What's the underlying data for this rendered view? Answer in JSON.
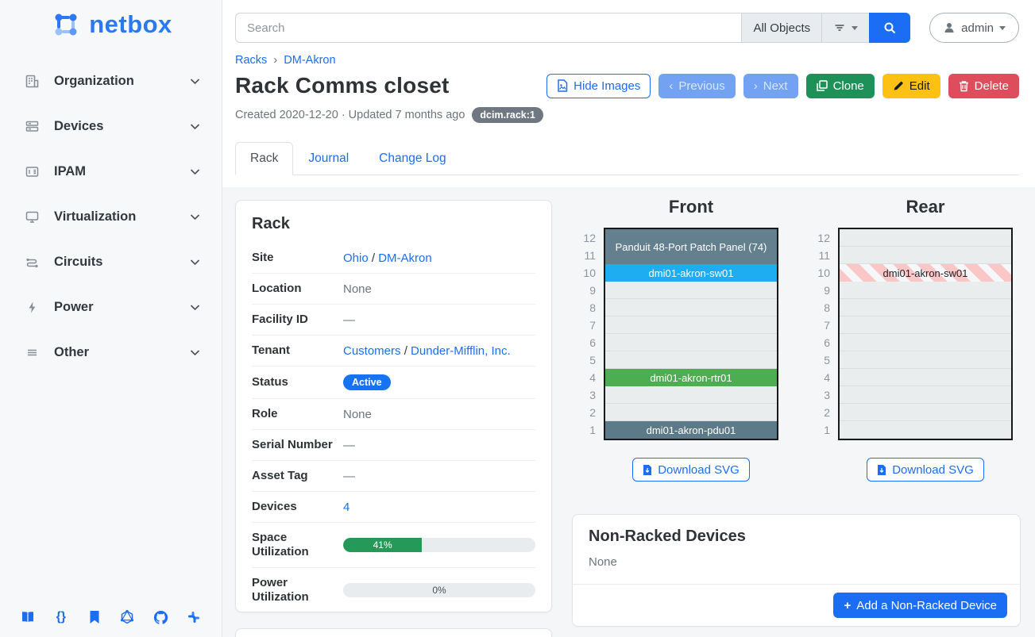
{
  "sidebar": {
    "logo_text": "netbox",
    "items": [
      {
        "label": "Organization",
        "icon": "building-icon"
      },
      {
        "label": "Devices",
        "icon": "server-icon"
      },
      {
        "label": "IPAM",
        "icon": "ip-address-icon"
      },
      {
        "label": "Virtualization",
        "icon": "monitor-icon"
      },
      {
        "label": "Circuits",
        "icon": "circuit-icon"
      },
      {
        "label": "Power",
        "icon": "power-bolt-icon"
      },
      {
        "label": "Other",
        "icon": "lines-icon"
      }
    ],
    "footer_icons": [
      "docs-book-icon",
      "rest-api-braces-icon",
      "api-docs-bookmark-icon",
      "graphql-icon",
      "github-icon",
      "community-icon"
    ]
  },
  "topbar": {
    "search_placeholder": "Search",
    "object_type_label": "All Objects",
    "user_label": "admin"
  },
  "breadcrumb": {
    "items": [
      "Racks",
      "DM-Akron"
    ],
    "separator": "›"
  },
  "header": {
    "title": "Rack Comms closet",
    "meta": "Created 2020-12-20 · Updated 7 months ago",
    "object_badge": "dcim.rack:1",
    "buttons": {
      "hide_images": "Hide Images",
      "previous": "Previous",
      "next": "Next",
      "clone": "Clone",
      "edit": "Edit",
      "delete": "Delete"
    }
  },
  "tabs": [
    {
      "label": "Rack",
      "active": true
    },
    {
      "label": "Journal",
      "active": false
    },
    {
      "label": "Change Log",
      "active": false
    }
  ],
  "rack_panel": {
    "title": "Rack",
    "site_label": "Site",
    "site_link1": "Ohio",
    "site_link2": "DM-Akron",
    "link_separator": "/",
    "location_label": "Location",
    "location_value": "None",
    "facility_label": "Facility ID",
    "facility_value": "—",
    "tenant_label": "Tenant",
    "tenant_link1": "Customers",
    "tenant_link2": "Dunder-Mifflin, Inc.",
    "status_label": "Status",
    "status_value": "Active",
    "role_label": "Role",
    "role_value": "None",
    "serial_label": "Serial Number",
    "serial_value": "—",
    "asset_label": "Asset Tag",
    "asset_value": "—",
    "devices_label": "Devices",
    "devices_value": "4",
    "space_label": "Space Utilization",
    "space_value": "41%",
    "space_percent": 41,
    "power_label": "Power Utilization",
    "power_value": "0%",
    "power_percent": 0
  },
  "elevations": {
    "units": [
      12,
      11,
      10,
      9,
      8,
      7,
      6,
      5,
      4,
      3,
      2,
      1
    ],
    "front": {
      "title": "Front",
      "download_label": "Download SVG",
      "devices": [
        {
          "name": "Panduit 48-Port Patch Panel (74)",
          "top_unit": 12,
          "u_height": 2,
          "color": "#64808f",
          "text_color": "#ffffff"
        },
        {
          "name": "dmi01-akron-sw01",
          "top_unit": 10,
          "u_height": 1,
          "color": "#1fadf2",
          "text_color": "#ffffff"
        },
        {
          "name": "dmi01-akron-rtr01",
          "top_unit": 4,
          "u_height": 1,
          "color": "#4cae51",
          "text_color": "#ffffff"
        },
        {
          "name": "dmi01-akron-pdu01",
          "top_unit": 1,
          "u_height": 1,
          "color": "#5d7a88",
          "text_color": "#ffffff"
        }
      ]
    },
    "rear": {
      "title": "Rear",
      "download_label": "Download SVG",
      "devices": [
        {
          "name": "dmi01-akron-sw01",
          "top_unit": 10,
          "u_height": 1,
          "pattern": "striped",
          "text_color": "#212529"
        }
      ]
    }
  },
  "non_racked": {
    "title": "Non-Racked Devices",
    "body": "None",
    "add_button": "Add a Non-Racked Device"
  },
  "colors": {
    "accent_blue": "#1b6ef3",
    "status_badge_blue": "#1673f1",
    "success_green": "#259a58",
    "clone_green": "#1e9158",
    "edit_yellow": "#fdc113",
    "delete_red": "#dd4d5c",
    "soft_blue_button": "#73a2f2",
    "object_badge_gray": "#6f7780",
    "rear_stripe_pink": "#fbc6c6"
  }
}
